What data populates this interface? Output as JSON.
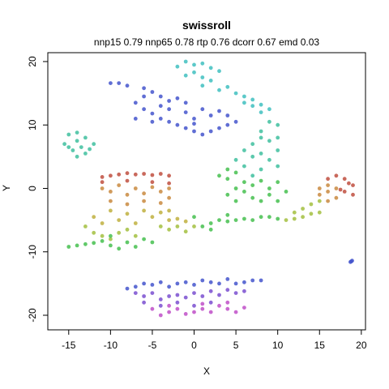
{
  "chart_data": {
    "type": "scatter",
    "title": "swissroll",
    "subtitle": "nnp15 0.79 nnp65 0.78 rtp 0.76 dcorr 0.67 emd 0.03",
    "xlabel": "X",
    "ylabel": "Y",
    "xlim": [
      -17.5,
      20.5
    ],
    "ylim": [
      -22.3,
      21.4
    ],
    "xticks": [
      "-15",
      "-10",
      "-5",
      "0",
      "5",
      "10",
      "15",
      "20"
    ],
    "yticks": [
      "-20",
      "-10",
      "0",
      "10",
      "20"
    ],
    "grid": false,
    "legend": "none",
    "point_colors": {
      "cyan": "#3fbfbf",
      "blue": "#4455cc",
      "violet": "#7a4fd0",
      "magenta": "#c04fc8",
      "teal": "#3fbf9f",
      "green": "#45bf4f",
      "yellow_green": "#a3bf3f",
      "olive": "#bfb03f",
      "orange": "#c98a3f",
      "red": "#bf4f3f"
    },
    "clusters": [
      {
        "name_hint": "top-arc-cyan",
        "color": "cyan",
        "points": [
          [
            -1,
            20
          ],
          [
            0,
            19.5
          ],
          [
            1,
            19.7
          ],
          [
            2,
            19
          ],
          [
            -2,
            19.2
          ],
          [
            3,
            18.5
          ],
          [
            0,
            18.3
          ],
          [
            1,
            17.5
          ],
          [
            -1,
            17.8
          ],
          [
            2,
            17
          ],
          [
            4,
            16
          ],
          [
            5,
            15
          ],
          [
            6,
            14.5
          ],
          [
            7,
            14
          ],
          [
            8,
            13.2
          ],
          [
            9,
            12.5
          ],
          [
            8,
            12
          ],
          [
            7,
            13
          ],
          [
            1,
            16.2
          ],
          [
            3,
            15.5
          ],
          [
            6,
            13.5
          ]
        ]
      },
      {
        "name_hint": "top-arc-blue",
        "color": "blue",
        "points": [
          [
            -10,
            16.6
          ],
          [
            -9,
            16.6
          ],
          [
            -8,
            16.2
          ],
          [
            -6,
            15.8
          ],
          [
            -5,
            15.2
          ],
          [
            -4,
            14.5
          ],
          [
            -3,
            13.8
          ],
          [
            -2,
            14.2
          ],
          [
            -1,
            13.5
          ],
          [
            -6,
            14.5
          ],
          [
            -7,
            13.5
          ],
          [
            -6,
            12.5
          ],
          [
            -5,
            11.8
          ],
          [
            -4,
            11
          ],
          [
            -3,
            10.5
          ],
          [
            -2,
            10
          ],
          [
            -1,
            9.5
          ],
          [
            0,
            9
          ],
          [
            1,
            8.5
          ],
          [
            2,
            9
          ],
          [
            3,
            9.5
          ],
          [
            4,
            10
          ],
          [
            5,
            10.5
          ],
          [
            -3,
            12.5
          ],
          [
            -1,
            12
          ],
          [
            0,
            11
          ],
          [
            1,
            12.5
          ],
          [
            2,
            11.5
          ],
          [
            3,
            12.2
          ],
          [
            -4,
            13
          ],
          [
            4,
            11.5
          ],
          [
            0,
            10.2
          ],
          [
            -5,
            10.5
          ],
          [
            -7,
            11
          ]
        ]
      },
      {
        "name_hint": "left-small-teal",
        "color": "teal",
        "points": [
          [
            -15,
            8.5
          ],
          [
            -14,
            8.8
          ],
          [
            -13,
            8
          ],
          [
            -14,
            7.5
          ],
          [
            -15.5,
            7
          ],
          [
            -15,
            6.5
          ],
          [
            -14.5,
            6
          ],
          [
            -13.5,
            6.5
          ],
          [
            -12,
            7
          ],
          [
            -13,
            5.5
          ],
          [
            -12.5,
            6.2
          ],
          [
            -14,
            5
          ]
        ]
      },
      {
        "name_hint": "right-arc-teal-green",
        "color": "teal",
        "points": [
          [
            8,
            9
          ],
          [
            9,
            10.5
          ],
          [
            10,
            10
          ],
          [
            8,
            8
          ],
          [
            7,
            7
          ],
          [
            9,
            7.5
          ],
          [
            10,
            8
          ],
          [
            6,
            6
          ],
          [
            7,
            5
          ],
          [
            8,
            5.5
          ],
          [
            9,
            4.5
          ],
          [
            10,
            6
          ],
          [
            5,
            4.5
          ],
          [
            6,
            3.5
          ],
          [
            8,
            3
          ],
          [
            10,
            3.5
          ],
          [
            7,
            2
          ]
        ]
      },
      {
        "name_hint": "right-arc-green",
        "color": "green",
        "points": [
          [
            4,
            3
          ],
          [
            5,
            2.5
          ],
          [
            4,
            1.5
          ],
          [
            6,
            1
          ],
          [
            7,
            0.5
          ],
          [
            8,
            1.2
          ],
          [
            9,
            0
          ],
          [
            10,
            1
          ],
          [
            5,
            0
          ],
          [
            6,
            -0.5
          ],
          [
            7,
            -1.5
          ],
          [
            8,
            -2
          ],
          [
            9,
            -1
          ],
          [
            10,
            -2
          ],
          [
            11,
            -0.5
          ],
          [
            4,
            -1
          ],
          [
            5,
            -2
          ],
          [
            3,
            2
          ]
        ]
      },
      {
        "name_hint": "left-block-red-orange",
        "color": "red",
        "points": [
          [
            -11,
            1.8
          ],
          [
            -10,
            2
          ],
          [
            -9,
            2.2
          ],
          [
            -8,
            2.4
          ],
          [
            -7,
            2.2
          ],
          [
            -6,
            2.3
          ],
          [
            -5,
            2.1
          ],
          [
            -4,
            2.3
          ],
          [
            -3,
            2
          ],
          [
            -11,
            1
          ],
          [
            -8,
            1.2
          ],
          [
            -5,
            1
          ],
          [
            -3,
            0.8
          ]
        ]
      },
      {
        "name_hint": "left-block-orange",
        "color": "orange",
        "points": [
          [
            -11,
            0
          ],
          [
            -10,
            -0.5
          ],
          [
            -9,
            0.5
          ],
          [
            -8,
            -1
          ],
          [
            -7,
            0
          ],
          [
            -6,
            -0.8
          ],
          [
            -5,
            0.2
          ],
          [
            -4,
            -0.5
          ],
          [
            -3,
            0
          ],
          [
            -10,
            -2
          ],
          [
            -8,
            -2.5
          ],
          [
            -6,
            -2
          ],
          [
            -4,
            -2.3
          ],
          [
            -3,
            -1.5
          ]
        ]
      },
      {
        "name_hint": "left-block-olive",
        "color": "olive",
        "points": [
          [
            -10,
            -3.5
          ],
          [
            -8,
            -4
          ],
          [
            -6,
            -3.5
          ],
          [
            -5,
            -4.5
          ],
          [
            -4,
            -3.8
          ],
          [
            -3,
            -3.5
          ],
          [
            -12,
            -4.5
          ],
          [
            -11,
            -5.5
          ],
          [
            -9,
            -5
          ],
          [
            -7,
            -5.5
          ],
          [
            -3,
            -5
          ],
          [
            -2,
            -4.8
          ],
          [
            -1,
            -5.2
          ]
        ]
      },
      {
        "name_hint": "left-block-yellow-green",
        "color": "yellow_green",
        "points": [
          [
            -13,
            -6
          ],
          [
            -12,
            -7
          ],
          [
            -11,
            -7.5
          ],
          [
            -10,
            -8
          ],
          [
            -9,
            -7
          ],
          [
            -8,
            -6.5
          ],
          [
            -7,
            -7.5
          ],
          [
            -4,
            -6
          ],
          [
            -3,
            -6.5
          ],
          [
            -2,
            -6
          ],
          [
            -1,
            -6.8
          ],
          [
            0,
            -6
          ]
        ]
      },
      {
        "name_hint": "left-tail-green",
        "color": "green",
        "points": [
          [
            -15,
            -9.2
          ],
          [
            -14,
            -9
          ],
          [
            -13,
            -8.8
          ],
          [
            -12,
            -8.6
          ],
          [
            -11,
            -8.3
          ],
          [
            -10,
            -9
          ],
          [
            -9,
            -9.5
          ],
          [
            -8,
            -8.5
          ],
          [
            -7,
            -9.2
          ],
          [
            -6,
            -8
          ],
          [
            -5,
            -8.5
          ],
          [
            -10,
            -7.5
          ]
        ]
      },
      {
        "name_hint": "middle-band-green",
        "color": "green",
        "points": [
          [
            1,
            -6
          ],
          [
            2,
            -5.5
          ],
          [
            3,
            -5
          ],
          [
            4,
            -5.2
          ],
          [
            5,
            -5
          ],
          [
            6,
            -4.8
          ],
          [
            7,
            -5
          ],
          [
            8,
            -4.5
          ],
          [
            9,
            -4.5
          ],
          [
            10,
            -4.8
          ],
          [
            0,
            -4.5
          ],
          [
            2,
            -6.5
          ],
          [
            4,
            -4.2
          ]
        ]
      },
      {
        "name_hint": "right-tail-olive",
        "color": "yellow_green",
        "points": [
          [
            11,
            -5
          ],
          [
            12,
            -4.8
          ],
          [
            13,
            -4.5
          ],
          [
            14,
            -4
          ],
          [
            15,
            -3.8
          ],
          [
            14,
            -2.5
          ],
          [
            13,
            -3.2
          ],
          [
            15,
            -2
          ],
          [
            12,
            -3.8
          ]
        ]
      },
      {
        "name_hint": "right-tail-orange",
        "color": "orange",
        "points": [
          [
            15,
            -1
          ],
          [
            16,
            -0.5
          ],
          [
            16,
            0.5
          ],
          [
            17,
            0
          ],
          [
            16,
            -2
          ],
          [
            17,
            -1.5
          ],
          [
            15,
            0
          ]
        ]
      },
      {
        "name_hint": "right-tail-red",
        "color": "red",
        "points": [
          [
            16,
            1.5
          ],
          [
            17,
            2
          ],
          [
            18,
            1.5
          ],
          [
            19,
            0.5
          ],
          [
            18,
            -0.5
          ],
          [
            19,
            -1
          ],
          [
            17.5,
            -0.2
          ],
          [
            18.5,
            0.8
          ]
        ]
      },
      {
        "name_hint": "far-right-blue",
        "color": "blue",
        "points": [
          [
            18.7,
            -11.6
          ],
          [
            18.8,
            -11.5
          ],
          [
            18.9,
            -11.4
          ]
        ]
      },
      {
        "name_hint": "bottom-blue",
        "color": "blue",
        "points": [
          [
            -8,
            -15.8
          ],
          [
            -7,
            -15.5
          ],
          [
            -6,
            -15
          ],
          [
            -5,
            -15.2
          ],
          [
            -4,
            -14.8
          ],
          [
            -3,
            -15.5
          ],
          [
            -2,
            -15
          ],
          [
            -1,
            -14.8
          ],
          [
            0,
            -15.2
          ],
          [
            1,
            -14.5
          ],
          [
            2,
            -14.8
          ],
          [
            3,
            -15
          ],
          [
            4,
            -14.3
          ],
          [
            5,
            -15
          ],
          [
            6,
            -14.8
          ],
          [
            7,
            -14.5
          ],
          [
            8,
            -14.5
          ]
        ]
      },
      {
        "name_hint": "bottom-violet",
        "color": "violet",
        "points": [
          [
            -7,
            -16.5
          ],
          [
            -6,
            -17
          ],
          [
            -5,
            -16.5
          ],
          [
            -4,
            -17.5
          ],
          [
            -3,
            -17
          ],
          [
            -2,
            -16.8
          ],
          [
            -1,
            -17.2
          ],
          [
            0,
            -16.5
          ],
          [
            1,
            -17
          ],
          [
            2,
            -16.2
          ],
          [
            3,
            -16.8
          ],
          [
            4,
            -16
          ],
          [
            5,
            -16.5
          ],
          [
            6,
            -16.2
          ],
          [
            -6,
            -18
          ],
          [
            -4,
            -18.5
          ],
          [
            -2,
            -18
          ],
          [
            0,
            -18.5
          ],
          [
            2,
            -18
          ]
        ]
      },
      {
        "name_hint": "bottom-magenta",
        "color": "magenta",
        "points": [
          [
            -5,
            -19
          ],
          [
            -4,
            -20
          ],
          [
            -3,
            -19.5
          ],
          [
            -2,
            -19
          ],
          [
            -1,
            -19.8
          ],
          [
            0,
            -19.5
          ],
          [
            1,
            -19
          ],
          [
            2,
            -19.5
          ],
          [
            3,
            -18.5
          ],
          [
            4,
            -19
          ],
          [
            5,
            -19.5
          ],
          [
            6,
            -18.8
          ],
          [
            -3,
            -18.5
          ],
          [
            1,
            -18.2
          ],
          [
            4,
            -18
          ]
        ]
      }
    ]
  }
}
